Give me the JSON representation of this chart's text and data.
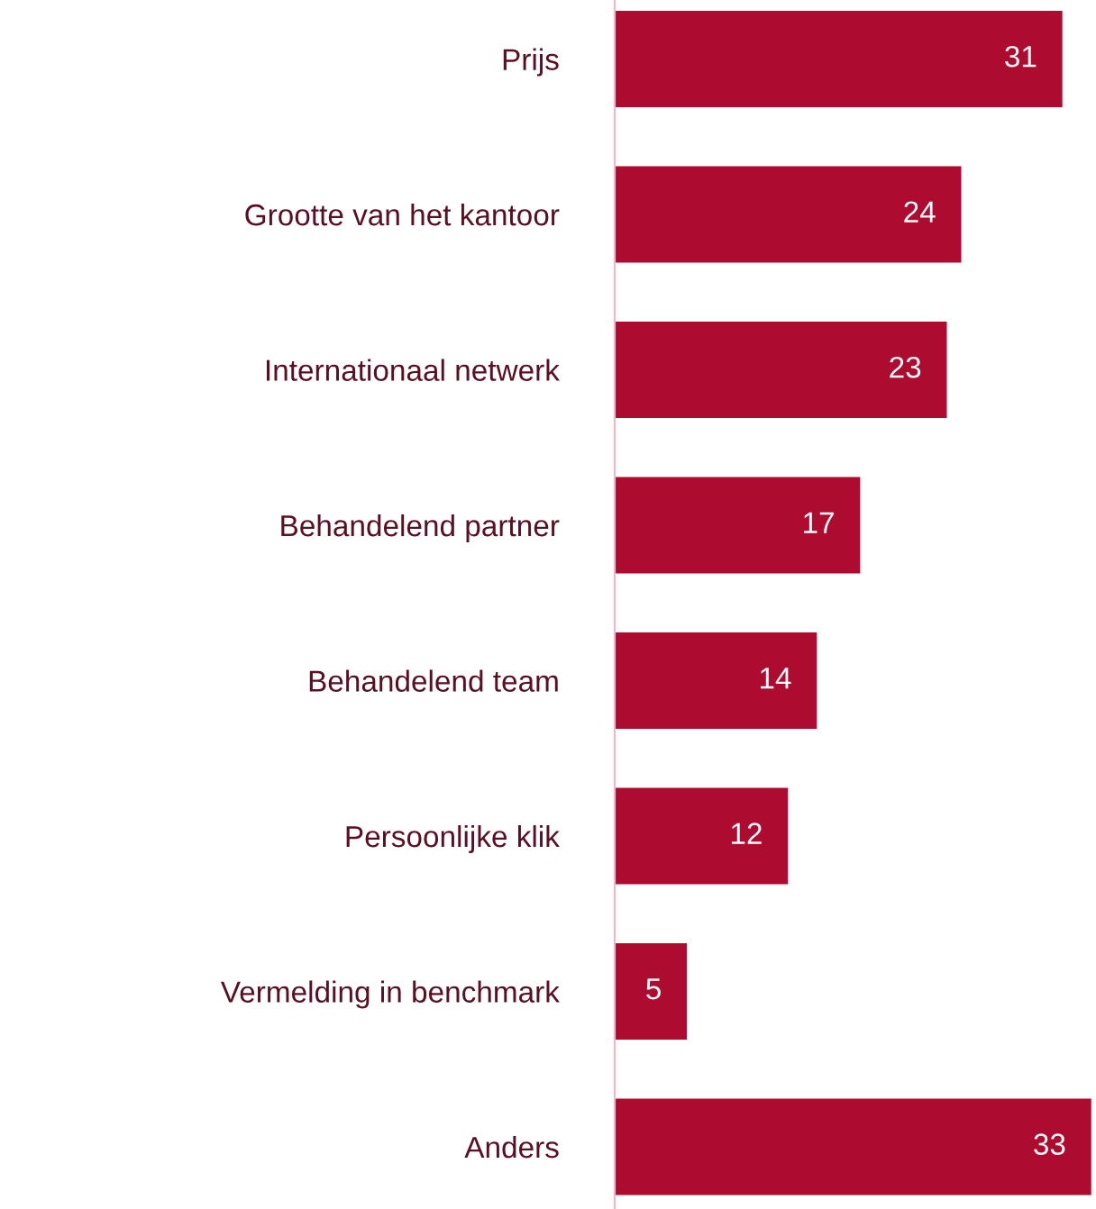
{
  "chart_data": {
    "type": "bar",
    "orientation": "horizontal",
    "categories": [
      "Prijs",
      "Grootte van het kantoor",
      "Internationaal netwerk",
      "Behandelend partner",
      "Behandelend team",
      "Persoonlijke klik",
      "Vermelding in benchmark",
      "Anders"
    ],
    "values": [
      31,
      24,
      23,
      17,
      14,
      12,
      5,
      33
    ],
    "color": "#ad0c30",
    "data_labels": true,
    "grid": false,
    "legend": false
  }
}
